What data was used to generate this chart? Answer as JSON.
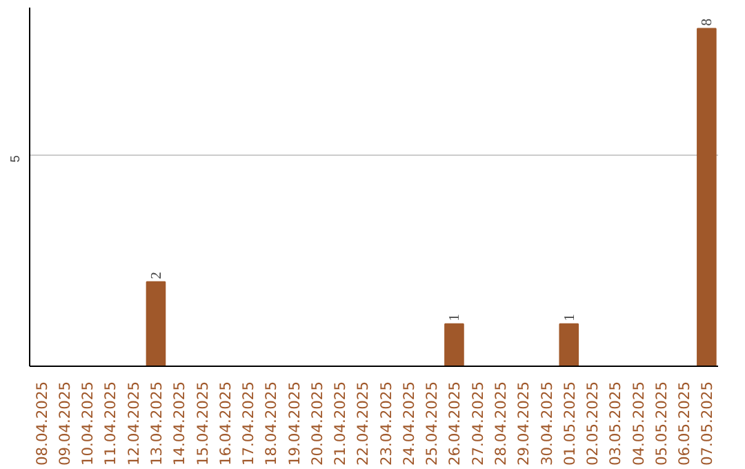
{
  "chart_data": {
    "type": "bar",
    "categories": [
      "08.04.2025",
      "09.04.2025",
      "10.04.2025",
      "11.04.2025",
      "12.04.2025",
      "13.04.2025",
      "14.04.2025",
      "15.04.2025",
      "16.04.2025",
      "17.04.2025",
      "18.04.2025",
      "19.04.2025",
      "20.04.2025",
      "21.04.2025",
      "22.04.2025",
      "23.04.2025",
      "24.04.2025",
      "25.04.2025",
      "26.04.2025",
      "27.04.2025",
      "28.04.2025",
      "29.04.2025",
      "30.04.2025",
      "01.05.2025",
      "02.05.2025",
      "03.05.2025",
      "04.05.2025",
      "05.05.2025",
      "06.05.2025",
      "07.05.2025"
    ],
    "values": [
      0,
      0,
      0,
      0,
      0,
      2,
      0,
      0,
      0,
      0,
      0,
      0,
      0,
      0,
      0,
      0,
      0,
      0,
      1,
      0,
      0,
      0,
      0,
      1,
      0,
      0,
      0,
      0,
      0,
      8
    ],
    "color": "#a0582a",
    "value_labels": [
      null,
      null,
      null,
      null,
      null,
      "2",
      null,
      null,
      null,
      null,
      null,
      null,
      null,
      null,
      null,
      null,
      null,
      null,
      "1",
      null,
      null,
      null,
      null,
      "1",
      null,
      null,
      null,
      null,
      null,
      "8"
    ],
    "ylim": [
      0,
      8.5
    ],
    "yticks": [
      5
    ],
    "grid": "y"
  }
}
